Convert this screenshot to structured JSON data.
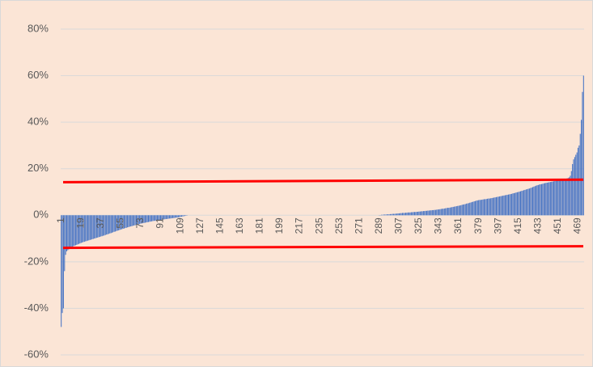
{
  "chart_data": {
    "type": "bar",
    "color": "#4472c4",
    "grid": true,
    "ylim": [
      -60,
      80
    ],
    "yticks": [
      {
        "value": -60,
        "label": "-60%"
      },
      {
        "value": -40,
        "label": "-40%"
      },
      {
        "value": -20,
        "label": "-20%"
      },
      {
        "value": 0,
        "label": "0%"
      },
      {
        "value": 20,
        "label": "20%"
      },
      {
        "value": 40,
        "label": "40%"
      },
      {
        "value": 60,
        "label": "60%"
      },
      {
        "value": 80,
        "label": "80%"
      }
    ],
    "reference_lines": [
      {
        "color": "#ff0000",
        "y_start": 14.2,
        "y_end": 15.3
      },
      {
        "color": "#ff0000",
        "y_start": -14.0,
        "y_end": -13.3
      }
    ],
    "categories": [
      1,
      null,
      null,
      null,
      null,
      null,
      null,
      null,
      null,
      null,
      null,
      null,
      null,
      null,
      null,
      null,
      null,
      null,
      19,
      null,
      null,
      null,
      null,
      null,
      null,
      null,
      null,
      null,
      null,
      null,
      null,
      null,
      null,
      null,
      null,
      null,
      37,
      null,
      null,
      null,
      null,
      null,
      null,
      null,
      null,
      null,
      null,
      null,
      null,
      null,
      null,
      null,
      null,
      null,
      55,
      null,
      null,
      null,
      null,
      null,
      null,
      null,
      null,
      null,
      null,
      null,
      null,
      null,
      null,
      null,
      null,
      null,
      73,
      null,
      null,
      null,
      null,
      null,
      null,
      null,
      null,
      null,
      null,
      null,
      null,
      null,
      null,
      null,
      null,
      null,
      91,
      null,
      null,
      null,
      null,
      null,
      null,
      null,
      null,
      null,
      null,
      null,
      null,
      null,
      null,
      null,
      null,
      null,
      109,
      null,
      null,
      null,
      null,
      null,
      null,
      null,
      null,
      null,
      null,
      null,
      null,
      null,
      null,
      null,
      null,
      null,
      127,
      null,
      null,
      null,
      null,
      null,
      null,
      null,
      null,
      null,
      null,
      null,
      null,
      null,
      null,
      null,
      null,
      null,
      145,
      null,
      null,
      null,
      null,
      null,
      null,
      null,
      null,
      null,
      null,
      null,
      null,
      null,
      null,
      null,
      null,
      null,
      163,
      null,
      null,
      null,
      null,
      null,
      null,
      null,
      null,
      null,
      null,
      null,
      null,
      null,
      null,
      null,
      null,
      null,
      181,
      null,
      null,
      null,
      null,
      null,
      null,
      null,
      null,
      null,
      null,
      null,
      null,
      null,
      null,
      null,
      null,
      null,
      199,
      null,
      null,
      null,
      null,
      null,
      null,
      null,
      null,
      null,
      null,
      null,
      null,
      null,
      null,
      null,
      null,
      null,
      217,
      null,
      null,
      null,
      null,
      null,
      null,
      null,
      null,
      null,
      null,
      null,
      null,
      null,
      null,
      null,
      null,
      null,
      235,
      null,
      null,
      null,
      null,
      null,
      null,
      null,
      null,
      null,
      null,
      null,
      null,
      null,
      null,
      null,
      null,
      null,
      253,
      null,
      null,
      null,
      null,
      null,
      null,
      null,
      null,
      null,
      null,
      null,
      null,
      null,
      null,
      null,
      null,
      null,
      271,
      null,
      null,
      null,
      null,
      null,
      null,
      null,
      null,
      null,
      null,
      null,
      null,
      null,
      null,
      null,
      null,
      null,
      289,
      null,
      null,
      null,
      null,
      null,
      null,
      null,
      null,
      null,
      null,
      null,
      null,
      null,
      null,
      null,
      null,
      null,
      307,
      null,
      null,
      null,
      null,
      null,
      null,
      null,
      null,
      null,
      null,
      null,
      null,
      null,
      null,
      null,
      null,
      null,
      325,
      null,
      null,
      null,
      null,
      null,
      null,
      null,
      null,
      null,
      null,
      null,
      null,
      null,
      null,
      null,
      null,
      null,
      343,
      null,
      null,
      null,
      null,
      null,
      null,
      null,
      null,
      null,
      null,
      null,
      null,
      null,
      null,
      null,
      null,
      null,
      361,
      null,
      null,
      null,
      null,
      null,
      null,
      null,
      null,
      null,
      null,
      null,
      null,
      null,
      null,
      null,
      null,
      null,
      379,
      null,
      null,
      null,
      null,
      null,
      null,
      null,
      null,
      null,
      null,
      null,
      null,
      null,
      null,
      null,
      null,
      null,
      397,
      null,
      null,
      null,
      null,
      null,
      null,
      null,
      null,
      null,
      null,
      null,
      null,
      null,
      null,
      null,
      null,
      null,
      415,
      null,
      null,
      null,
      null,
      null,
      null,
      null,
      null,
      null,
      null,
      null,
      null,
      null,
      null,
      null,
      null,
      null,
      433,
      null,
      null,
      null,
      null,
      null,
      null,
      null,
      null,
      null,
      null,
      null,
      null,
      null,
      null,
      null,
      null,
      null,
      451,
      null,
      null,
      null,
      null,
      null,
      null,
      null,
      null,
      null,
      null,
      null,
      null,
      null,
      null,
      null,
      null,
      null,
      469,
      null,
      null,
      null,
      null,
      null
    ],
    "values": [
      -48,
      -42,
      -40,
      -24,
      -17,
      -15.5,
      -15,
      -14.6,
      -14.2,
      -13.9,
      -13.6,
      -13.3,
      -13.1,
      -12.9,
      -12.7,
      -12.5,
      -12.3,
      -12.1,
      -11.9,
      -11.7,
      -11.5,
      -11.4,
      -11.2,
      -11.1,
      -10.9,
      -10.8,
      -10.6,
      -10.5,
      -10.3,
      -10.2,
      -10.0,
      -9.9,
      -9.7,
      -9.6,
      -9.4,
      -9.3,
      -9.1,
      -9.0,
      -8.8,
      -8.7,
      -8.5,
      -8.3,
      -8.2,
      -8.0,
      -7.8,
      -7.7,
      -7.5,
      -7.3,
      -7.1,
      -7.0,
      -6.8,
      -6.6,
      -6.5,
      -6.3,
      -6.1,
      -6.0,
      -5.8,
      -5.7,
      -5.5,
      -5.4,
      -5.2,
      -5.1,
      -4.9,
      -4.8,
      -4.7,
      -4.5,
      -4.4,
      -4.3,
      -4.1,
      -4.0,
      -3.9,
      -3.7,
      -3.6,
      -3.5,
      -3.4,
      -3.3,
      -3.2,
      -3.1,
      -3.0,
      -2.9,
      -2.8,
      -2.7,
      -2.6,
      -2.5,
      -2.4,
      -2.4,
      -2.3,
      -2.2,
      -2.1,
      -2.1,
      -2.0,
      -1.9,
      -1.8,
      -1.8,
      -1.7,
      -1.6,
      -1.6,
      -1.5,
      -1.4,
      -1.4,
      -1.3,
      -1.2,
      -1.2,
      -1.1,
      -1.0,
      -1.0,
      -0.9,
      -0.8,
      -0.7,
      -0.6,
      -0.5,
      -0.4,
      -0.3,
      -0.2,
      -0.1,
      0,
      0,
      0,
      0,
      0,
      0,
      0,
      0,
      0,
      0,
      0,
      0,
      0,
      0,
      0,
      0,
      0,
      0,
      0,
      0,
      0,
      0,
      0,
      0,
      0,
      0,
      0,
      0,
      0,
      0,
      0,
      0,
      0,
      0,
      0,
      0,
      0,
      0,
      0,
      0,
      0,
      0,
      0,
      0,
      0,
      0,
      0,
      0,
      0,
      0,
      0,
      0,
      0,
      0,
      0,
      0,
      0,
      0,
      0,
      0,
      0,
      0,
      0,
      0,
      0,
      0,
      0,
      0,
      0,
      0,
      0,
      0,
      0,
      0,
      0,
      0,
      0,
      0,
      0,
      0,
      0,
      0,
      0,
      0,
      0,
      0,
      0,
      0,
      0,
      0,
      0,
      0,
      0,
      0,
      0,
      0,
      0,
      0,
      0,
      0,
      0,
      0,
      0,
      0,
      0,
      0,
      0,
      0,
      0,
      0,
      0,
      0,
      0,
      0,
      0,
      0,
      0,
      0,
      0,
      0,
      0,
      0,
      0,
      0,
      0,
      0,
      0,
      0,
      0,
      0,
      0,
      0,
      0,
      0,
      0,
      0,
      0,
      0,
      0,
      0,
      0,
      0,
      0,
      0,
      0,
      0,
      0,
      0,
      0,
      0,
      0,
      0,
      0,
      0,
      0,
      0,
      0,
      0,
      0,
      0,
      0,
      0,
      0,
      0,
      0,
      0,
      0,
      0,
      0,
      0,
      0,
      0,
      0,
      0.1,
      0.1,
      0.2,
      0.2,
      0.3,
      0.3,
      0.3,
      0.4,
      0.4,
      0.4,
      0.5,
      0.5,
      0.6,
      0.6,
      0.6,
      0.7,
      0.7,
      0.8,
      0.8,
      0.9,
      0.9,
      1.0,
      1.0,
      1.0,
      1.1,
      1.1,
      1.2,
      1.2,
      1.2,
      1.3,
      1.3,
      1.4,
      1.4,
      1.4,
      1.5,
      1.5,
      1.6,
      1.6,
      1.7,
      1.7,
      1.8,
      1.8,
      1.9,
      1.9,
      2.0,
      2.0,
      2.1,
      2.1,
      2.2,
      2.2,
      2.3,
      2.3,
      2.4,
      2.5,
      2.5,
      2.6,
      2.7,
      2.8,
      2.8,
      2.9,
      3.0,
      3.1,
      3.2,
      3.2,
      3.3,
      3.4,
      3.5,
      3.6,
      3.7,
      3.8,
      3.9,
      4.0,
      4.1,
      4.2,
      4.3,
      4.5,
      4.6,
      4.7,
      4.8,
      5.0,
      5.1,
      5.2,
      5.4,
      5.5,
      5.7,
      5.8,
      6.0,
      6.1,
      6.3,
      6.4,
      6.5,
      6.6,
      6.6,
      6.7,
      6.8,
      6.9,
      6.9,
      7.0,
      7.1,
      7.2,
      7.2,
      7.3,
      7.4,
      7.5,
      7.6,
      7.7,
      7.8,
      7.9,
      8.0,
      8.1,
      8.2,
      8.3,
      8.4,
      8.5,
      8.6,
      8.7,
      8.8,
      8.9,
      9.0,
      9.1,
      9.2,
      9.4,
      9.5,
      9.6,
      9.8,
      9.9,
      10.0,
      10.2,
      10.3,
      10.5,
      10.6,
      10.8,
      10.9,
      11.1,
      11.2,
      11.4,
      11.5,
      11.7,
      11.9,
      12.1,
      12.3,
      12.5,
      12.7,
      12.9,
      13.0,
      13.2,
      13.3,
      13.4,
      13.5,
      13.7,
      13.8,
      13.9,
      14.0,
      14.1,
      14.2,
      14.3,
      14.4,
      14.5,
      14.6,
      14.7,
      14.8,
      14.9,
      15.0,
      15.1,
      15.2,
      15.3,
      15.4,
      15.5,
      15.6,
      15.7,
      15.8,
      16.0,
      16.3,
      17,
      19,
      22,
      24,
      25,
      26,
      27,
      29,
      30,
      35,
      41,
      53,
      60
    ]
  }
}
